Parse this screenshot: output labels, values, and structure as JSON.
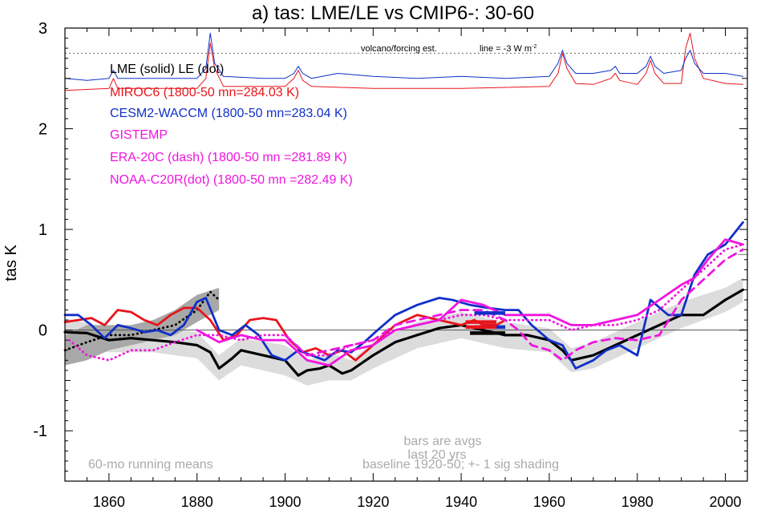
{
  "chart_data": {
    "type": "line",
    "title": "a) tas: LME/LE vs CMIP6-: 30-60",
    "ylabel": "tas K",
    "xlabel": "",
    "xlim": [
      1850,
      2005
    ],
    "ylim": [
      -1.5,
      3.0
    ],
    "xticks": [
      1860,
      1880,
      1900,
      1920,
      1940,
      1960,
      1980,
      2000
    ],
    "yticks": [
      -1,
      0,
      1,
      2,
      3
    ],
    "ytick_labels": [
      "-1",
      "0",
      "1",
      "2",
      "3"
    ],
    "grid": false,
    "legend_placement": "top-left",
    "legend": [
      {
        "text": "LME (solid)   LE (dot)",
        "color": "#000000"
      },
      {
        "text": "MIROC6 (1800-50 mn=284.03 K)",
        "color": "#e8141c"
      },
      {
        "text": "CESM2-WACCM (1800-50 mn=283.04 K)",
        "color": "#1030c8"
      },
      {
        "text": "GISTEMP",
        "color": "#f014e0"
      },
      {
        "text": "ERA-20C (dash) (1800-50 mn =281.89 K)",
        "color": "#f014e0"
      },
      {
        "text": "NOAA-C20R(dot) (1800-50 mn =282.49 K)",
        "color": "#f014e0"
      }
    ],
    "annotations": {
      "volcano": "volcano/forcing est.",
      "line_note": "line = -3 W m",
      "line_note_sup": "-2",
      "bars_note_1": "bars are avgs",
      "bars_note_2": "last 20 yrs",
      "running": "60-mo running means",
      "baseline": "baseline 1920-50; +- 1 sig shading"
    },
    "reference_lines": {
      "zero": 0.0,
      "forcing_threshold": 2.75,
      "right_tick": 0.75
    },
    "colors": {
      "lme": "#000000",
      "miroc": "#e8141c",
      "cesm": "#1030c8",
      "obs": "#f014e0",
      "shade_lme": "#dcdcdc",
      "shade_le": "#a8a8a8"
    },
    "series": [
      {
        "name": "LME",
        "color": "#000000",
        "style": "solid",
        "x": [
          1850,
          1855,
          1860,
          1865,
          1870,
          1875,
          1880,
          1883,
          1885,
          1888,
          1890,
          1895,
          1900,
          1903,
          1905,
          1908,
          1910,
          1913,
          1915,
          1920,
          1925,
          1930,
          1935,
          1940,
          1945,
          1950,
          1955,
          1960,
          1963,
          1965,
          1970,
          1975,
          1980,
          1985,
          1990,
          1995,
          2000,
          2004
        ],
        "y": [
          -0.02,
          -0.03,
          -0.1,
          -0.08,
          -0.1,
          -0.12,
          -0.15,
          -0.22,
          -0.38,
          -0.28,
          -0.2,
          -0.25,
          -0.3,
          -0.45,
          -0.4,
          -0.38,
          -0.35,
          -0.43,
          -0.4,
          -0.25,
          -0.12,
          -0.05,
          0.02,
          0.05,
          0.0,
          -0.05,
          -0.05,
          -0.1,
          -0.2,
          -0.3,
          -0.25,
          -0.15,
          -0.05,
          0.05,
          0.15,
          0.15,
          0.3,
          0.4
        ]
      },
      {
        "name": "LE",
        "color": "#000000",
        "style": "dot",
        "x": [
          1850,
          1855,
          1860,
          1865,
          1870,
          1875,
          1880,
          1883,
          1885
        ],
        "y": [
          -0.2,
          -0.12,
          -0.05,
          -0.05,
          0.0,
          0.05,
          0.2,
          0.38,
          0.3
        ]
      },
      {
        "name": "MIROC6",
        "color": "#e8141c",
        "style": "solid",
        "x": [
          1850,
          1853,
          1856,
          1859,
          1862,
          1865,
          1868,
          1871,
          1874,
          1877,
          1880,
          1883,
          1886,
          1889,
          1892,
          1895,
          1898,
          1901,
          1904,
          1907,
          1910,
          1913,
          1916,
          1920,
          1925,
          1930,
          1935,
          1940,
          1943,
          1945,
          1948,
          1950
        ],
        "y": [
          0.08,
          0.1,
          0.12,
          0.05,
          0.2,
          0.18,
          0.1,
          0.05,
          0.15,
          0.22,
          0.22,
          0.1,
          -0.1,
          -0.05,
          0.1,
          0.12,
          0.1,
          -0.1,
          -0.22,
          -0.18,
          -0.25,
          -0.2,
          -0.3,
          -0.15,
          0.05,
          0.15,
          0.1,
          0.05,
          0.1,
          0.05,
          0.05,
          0.1
        ]
      },
      {
        "name": "CESM2-WACCM",
        "color": "#1030c8",
        "style": "solid",
        "x": [
          1850,
          1853,
          1856,
          1859,
          1862,
          1865,
          1868,
          1871,
          1874,
          1877,
          1880,
          1882,
          1885,
          1888,
          1891,
          1894,
          1897,
          1900,
          1903,
          1906,
          1909,
          1912,
          1915,
          1918,
          1921,
          1925,
          1930,
          1935,
          1938,
          1942,
          1946,
          1950,
          1953,
          1956,
          1960,
          1963,
          1966,
          1970,
          1973,
          1976,
          1980,
          1983,
          1987,
          1990,
          1993,
          1996,
          2000,
          2004
        ],
        "y": [
          0.15,
          0.15,
          0.05,
          -0.08,
          0.05,
          0.02,
          -0.02,
          0.0,
          -0.05,
          0.05,
          0.28,
          0.32,
          0.0,
          -0.05,
          0.05,
          -0.05,
          -0.25,
          -0.3,
          -0.2,
          -0.25,
          -0.3,
          -0.2,
          -0.22,
          -0.12,
          0.0,
          0.15,
          0.25,
          0.32,
          0.3,
          0.25,
          0.22,
          0.2,
          0.2,
          0.05,
          -0.1,
          -0.15,
          -0.38,
          -0.3,
          -0.2,
          -0.15,
          -0.25,
          0.3,
          0.15,
          0.15,
          0.55,
          0.75,
          0.85,
          1.07
        ]
      },
      {
        "name": "GISTEMP",
        "color": "#f014e0",
        "style": "solid",
        "x": [
          1880,
          1885,
          1890,
          1895,
          1900,
          1905,
          1910,
          1915,
          1920,
          1925,
          1930,
          1935,
          1940,
          1945,
          1950,
          1955,
          1960,
          1965,
          1970,
          1975,
          1980,
          1985,
          1990,
          1993,
          1996,
          2000,
          2004
        ],
        "y": [
          0.0,
          -0.12,
          -0.05,
          -0.1,
          -0.1,
          -0.3,
          -0.35,
          -0.2,
          -0.15,
          0.0,
          0.05,
          0.1,
          0.3,
          0.25,
          0.15,
          0.15,
          0.15,
          0.05,
          0.05,
          0.1,
          0.15,
          0.3,
          0.45,
          0.52,
          0.7,
          0.9,
          0.85
        ]
      },
      {
        "name": "ERA-20C",
        "color": "#f014e0",
        "style": "dash",
        "x": [
          1900,
          1905,
          1910,
          1915,
          1920,
          1925,
          1930,
          1935,
          1940,
          1945,
          1950,
          1953,
          1956,
          1960,
          1963,
          1966,
          1970,
          1975,
          1980,
          1985,
          1990,
          1995,
          2000,
          2004
        ],
        "y": [
          -0.05,
          -0.25,
          -0.2,
          -0.15,
          -0.1,
          0.05,
          0.1,
          0.15,
          0.2,
          0.2,
          0.1,
          0.0,
          -0.15,
          -0.2,
          -0.3,
          -0.2,
          -0.12,
          -0.08,
          -0.1,
          -0.05,
          0.3,
          0.5,
          0.7,
          0.8
        ]
      },
      {
        "name": "NOAA-C20R",
        "color": "#f014e0",
        "style": "dot",
        "x": [
          1851,
          1855,
          1860,
          1865,
          1870,
          1875,
          1880,
          1885,
          1890,
          1895,
          1900,
          1905,
          1910,
          1915,
          1920,
          1925,
          1930,
          1935,
          1940,
          1945,
          1950,
          1955,
          1960,
          1965,
          1970,
          1975,
          1980,
          1985,
          1990,
          1995,
          2000,
          2004
        ],
        "y": [
          -0.1,
          -0.25,
          -0.3,
          -0.2,
          -0.2,
          -0.12,
          -0.05,
          -0.05,
          -0.1,
          -0.05,
          -0.05,
          -0.25,
          -0.25,
          -0.15,
          -0.1,
          0.0,
          0.05,
          0.1,
          0.15,
          0.15,
          0.1,
          0.1,
          0.1,
          0.0,
          0.05,
          0.05,
          0.1,
          0.2,
          0.4,
          0.6,
          0.8,
          0.85
        ]
      },
      {
        "name": "MIROC6 forcing",
        "color": "#e8141c",
        "style": "solid",
        "x": [
          1850,
          1860,
          1861,
          1862,
          1870,
          1880,
          1882,
          1883,
          1884,
          1886,
          1900,
          1902,
          1903,
          1904,
          1906,
          1920,
          1940,
          1960,
          1962,
          1963,
          1964,
          1966,
          1970,
          1974,
          1975,
          1976,
          1980,
          1982,
          1983,
          1984,
          1986,
          1990,
          1991,
          1992,
          1993,
          1995,
          2000,
          2004
        ],
        "y": [
          2.38,
          2.4,
          2.5,
          2.4,
          2.4,
          2.4,
          2.5,
          2.85,
          2.6,
          2.42,
          2.42,
          2.5,
          2.58,
          2.48,
          2.42,
          2.4,
          2.4,
          2.42,
          2.55,
          2.75,
          2.6,
          2.45,
          2.44,
          2.5,
          2.55,
          2.48,
          2.44,
          2.55,
          2.68,
          2.55,
          2.45,
          2.45,
          2.8,
          2.95,
          2.7,
          2.5,
          2.45,
          2.44
        ]
      },
      {
        "name": "CESM2-WACCM forcing",
        "color": "#1030c8",
        "style": "solid",
        "x": [
          1850,
          1855,
          1860,
          1861,
          1862,
          1870,
          1880,
          1882,
          1883,
          1884,
          1886,
          1895,
          1900,
          1902,
          1903,
          1904,
          1906,
          1912,
          1920,
          1930,
          1940,
          1950,
          1960,
          1962,
          1963,
          1964,
          1966,
          1970,
          1974,
          1975,
          1976,
          1980,
          1982,
          1983,
          1984,
          1986,
          1990,
          1991,
          1992,
          1993,
          1995,
          2000,
          2004
        ],
        "y": [
          2.5,
          2.48,
          2.5,
          2.58,
          2.5,
          2.5,
          2.5,
          2.6,
          2.95,
          2.65,
          2.52,
          2.5,
          2.5,
          2.55,
          2.62,
          2.55,
          2.5,
          2.55,
          2.52,
          2.5,
          2.52,
          2.5,
          2.52,
          2.65,
          2.78,
          2.65,
          2.55,
          2.55,
          2.58,
          2.62,
          2.55,
          2.55,
          2.62,
          2.72,
          2.62,
          2.55,
          2.58,
          2.7,
          2.78,
          2.65,
          2.55,
          2.55,
          2.52
        ]
      }
    ],
    "shading": [
      {
        "name": "LME +- 1 sig",
        "color": "#dcdcdc",
        "x": [
          1850,
          1860,
          1870,
          1880,
          1885,
          1890,
          1900,
          1905,
          1910,
          1915,
          1920,
          1930,
          1940,
          1950,
          1960,
          1965,
          1970,
          1980,
          1990,
          2000,
          2004
        ],
        "lower": [
          -0.15,
          -0.22,
          -0.22,
          -0.28,
          -0.5,
          -0.35,
          -0.45,
          -0.55,
          -0.5,
          -0.5,
          -0.38,
          -0.18,
          -0.08,
          -0.18,
          -0.22,
          -0.42,
          -0.38,
          -0.18,
          0.02,
          0.18,
          0.28
        ],
        "upper": [
          0.12,
          0.02,
          0.02,
          -0.02,
          -0.25,
          -0.08,
          -0.15,
          -0.3,
          -0.22,
          -0.3,
          -0.12,
          0.08,
          0.18,
          0.08,
          0.02,
          -0.18,
          -0.12,
          0.08,
          0.28,
          0.42,
          0.52
        ]
      },
      {
        "name": "LE +- 1 sig",
        "color": "#a8a8a8",
        "x": [
          1850,
          1855,
          1860,
          1865,
          1870,
          1875,
          1880,
          1885
        ],
        "lower": [
          -0.35,
          -0.3,
          -0.2,
          -0.15,
          -0.1,
          -0.05,
          0.08,
          0.2
        ],
        "upper": [
          -0.05,
          0.05,
          0.05,
          0.05,
          0.1,
          0.2,
          0.35,
          0.42
        ]
      }
    ],
    "bars": [
      {
        "name": "CESM2-WACCM",
        "color": "#1030c8",
        "x": [
          1943,
          1950
        ],
        "y": 0.17
      },
      {
        "name": "CESM2-WACCM",
        "color": "#1030c8",
        "x": [
          1943,
          1950
        ],
        "y": 0.03
      },
      {
        "name": "MIROC6",
        "color": "#e8141c",
        "x": [
          1941,
          1948
        ],
        "y": 0.08
      },
      {
        "name": "MIROC6",
        "color": "#e8141c",
        "x": [
          1941,
          1948
        ],
        "y": 0.03
      },
      {
        "name": "LME",
        "color": "#000000",
        "x": [
          1942,
          1950
        ],
        "y": -0.03
      }
    ]
  }
}
